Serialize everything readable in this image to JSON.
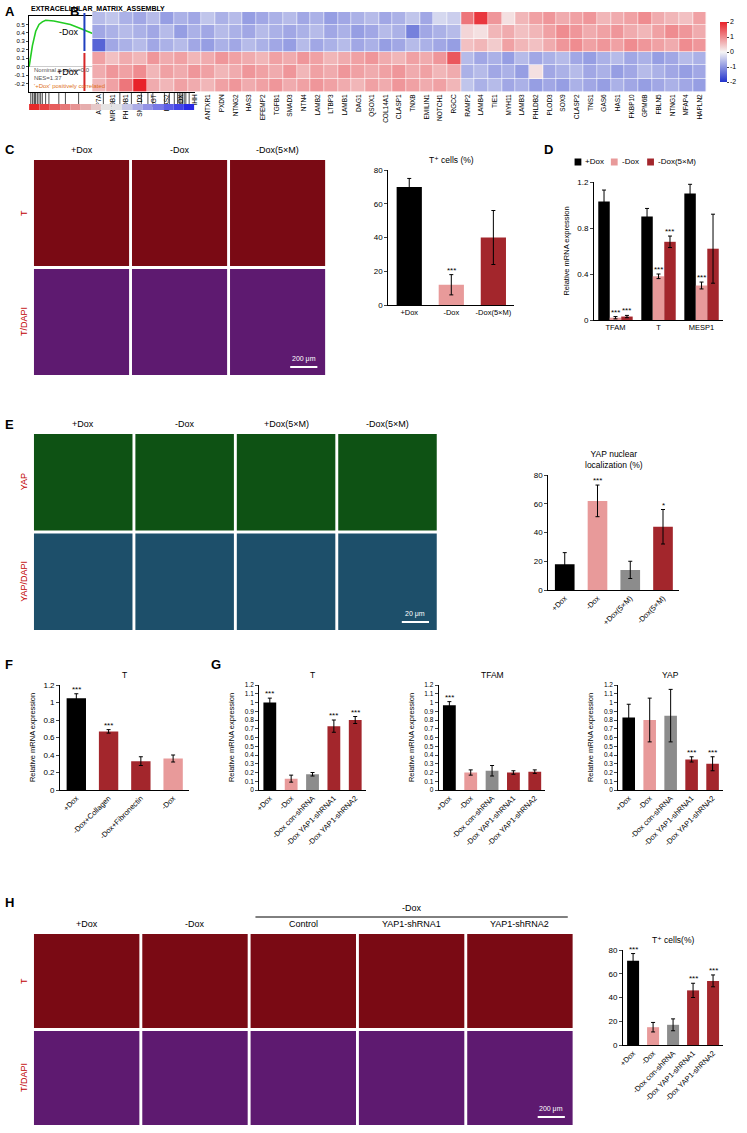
{
  "chart_data": [
    {
      "panel": "A",
      "type": "line",
      "title": "EXTRACELLULAR_MATRIX_ASSEMBLY",
      "color": "#22cc22",
      "x": [
        0,
        2,
        4,
        6,
        8,
        10,
        15,
        20,
        25,
        30,
        35,
        40,
        45,
        50,
        55,
        60,
        65,
        70,
        75,
        80,
        85,
        88,
        90,
        93,
        96,
        98,
        100
      ],
      "values": [
        0,
        0.25,
        0.42,
        0.5,
        0.53,
        0.55,
        0.54,
        0.52,
        0.5,
        0.46,
        0.42,
        0.38,
        0.32,
        0.27,
        0.2,
        0.13,
        0.06,
        0,
        -0.06,
        -0.12,
        -0.18,
        -0.22,
        -0.24,
        -0.2,
        -0.1,
        -0.03,
        0
      ],
      "hits": [
        1,
        2,
        3,
        3.5,
        4,
        5,
        6,
        7,
        8,
        10,
        12,
        18,
        22,
        30,
        45,
        55,
        62,
        68,
        72,
        75,
        82,
        85,
        88,
        90,
        91,
        92,
        93,
        94,
        95,
        97
      ],
      "xlim": [
        0,
        100
      ],
      "ylim": [
        -0.3,
        0.6
      ],
      "yticks": [
        0.5,
        0.4,
        0.3,
        0.2,
        0.1,
        {
          "value": 0,
          "label": "0.0"
        },
        -0.1,
        -0.2
      ],
      "annotations": [
        {
          "text": "Nominal p-value=0.0",
          "color": "#555555"
        },
        {
          "text": "NES=1.37",
          "color": "#555555"
        },
        {
          "text": "'+Dox' positively correlated",
          "color": "#e07020"
        }
      ],
      "tick_labels": "y",
      "grid": false
    },
    {
      "panel": "B",
      "type": "heatmap",
      "categories": [
        "ATP7A",
        "MIR29B1",
        "PHLDB1",
        "SMPD3",
        "AGT",
        "HAS2",
        "LOX",
        "IHH",
        "ANTXR1",
        "PXDN",
        "NTNG2",
        "HAS3",
        "EFEMP2",
        "TGFB1",
        "SMAD3",
        "NTN4",
        "LAMB2",
        "LTBP3",
        "LAMB1",
        "DAG1",
        "QSOX1",
        "COL14A1",
        "CLASP1",
        "TNXB",
        "EMILIN1",
        "NOTCH1",
        "RGCC",
        "RAMP2",
        "LAMB4",
        "TIE1",
        "MYH11",
        "LAMB3",
        "PHLDB2",
        "PLOD3",
        "SOX9",
        "CLASP2",
        "TNS1",
        "GAS6",
        "HAS1",
        "FKBP10",
        "GPM6B",
        "FBLN5",
        "NTNG1",
        "MFAP4",
        "HAPLN2"
      ],
      "cells": [
        [
          -0.6,
          -0.5,
          -0.7,
          -0.8,
          -0.6,
          -0.9,
          -0.7,
          -0.8,
          -0.5,
          -0.7,
          -0.6,
          -0.9,
          -0.8,
          -0.7,
          -0.6,
          -0.8,
          -0.7,
          -0.9,
          -0.8,
          -0.7,
          -0.6,
          -0.8,
          -0.7,
          -0.5,
          -0.8,
          -0.3,
          -0.4,
          1.2,
          1.8,
          0.9,
          0.2,
          0.6,
          0.8,
          0.9,
          0.7,
          0.8,
          0.9,
          0.6,
          0.7,
          0.8,
          1.0,
          0.7,
          0.6,
          0.5,
          0.8
        ],
        [
          -0.8,
          -0.7,
          -0.6,
          -0.7,
          -0.8,
          -0.6,
          -0.9,
          -0.7,
          -0.8,
          -0.6,
          -0.7,
          -0.8,
          -0.6,
          -0.7,
          -0.8,
          -0.7,
          -0.6,
          -0.8,
          -0.7,
          -0.9,
          -0.8,
          -0.6,
          -0.7,
          -1.2,
          -0.8,
          -0.7,
          -0.6,
          0.3,
          0.2,
          0.6,
          0.7,
          0.5,
          0.6,
          0.8,
          1.0,
          0.9,
          0.7,
          0.8,
          0.9,
          0.7,
          0.6,
          0.8,
          1.0,
          0.9,
          0.7
        ],
        [
          -1.5,
          -0.8,
          -0.7,
          -0.6,
          -0.8,
          -0.7,
          -0.6,
          -0.8,
          -0.9,
          -0.7,
          -0.8,
          -0.6,
          -0.7,
          -0.8,
          -0.9,
          -0.6,
          -0.8,
          -0.7,
          -0.6,
          -0.8,
          -0.7,
          -0.9,
          -0.8,
          -0.6,
          -0.7,
          -0.8,
          -0.9,
          0.5,
          0.6,
          0.4,
          0.8,
          0.6,
          0.5,
          0.7,
          0.9,
          1.0,
          0.8,
          0.9,
          0.8,
          1.0,
          0.9,
          0.8,
          0.7,
          1.0,
          0.9
        ],
        [
          0.8,
          0.5,
          0.7,
          0.6,
          0.9,
          0.7,
          0.8,
          0.6,
          0.7,
          0.9,
          0.8,
          0.7,
          0.6,
          0.8,
          0.7,
          0.9,
          0.8,
          0.6,
          0.7,
          0.8,
          0.9,
          0.7,
          0.6,
          0.8,
          0.7,
          0.9,
          1.5,
          -0.6,
          -0.8,
          -0.7,
          -0.9,
          -0.6,
          -0.8,
          -0.7,
          -0.6,
          -0.8,
          -0.9,
          -0.7,
          -0.6,
          -0.8,
          -0.7,
          -0.9,
          -0.8,
          -0.6,
          -0.7
        ],
        [
          0.7,
          0.9,
          0.8,
          1.0,
          0.6,
          0.8,
          0.7,
          0.9,
          0.8,
          0.6,
          0.7,
          0.9,
          0.8,
          0.7,
          0.9,
          0.6,
          0.8,
          0.7,
          0.9,
          0.8,
          0.7,
          0.8,
          0.9,
          0.7,
          0.8,
          0.6,
          0.7,
          -0.7,
          -0.6,
          -0.8,
          -0.7,
          -0.9,
          0.2,
          -0.8,
          -0.7,
          -0.6,
          -0.8,
          -0.7,
          -0.9,
          -0.8,
          -0.6,
          -0.7,
          -0.8,
          -0.9,
          -0.8
        ],
        [
          0.6,
          0.8,
          1.2,
          2.0,
          0.7,
          0.6,
          0.8,
          0.7,
          0.6,
          0.8,
          0.9,
          0.7,
          0.8,
          0.9,
          0.7,
          0.8,
          0.9,
          0.8,
          0.7,
          0.6,
          0.8,
          0.7,
          0.9,
          0.8,
          0.7,
          0.8,
          0.6,
          -0.5,
          -0.7,
          -0.6,
          -0.8,
          -0.7,
          -0.9,
          -0.8,
          -0.9,
          -0.7,
          -0.8,
          -0.9,
          -0.7,
          -0.8,
          -0.9,
          -0.8,
          -0.7,
          -0.8,
          -0.9
        ]
      ],
      "row_groups": [
        {
          "label": "-Dox",
          "size": 3,
          "color": "#1f3fbf"
        },
        {
          "label": "+Dox",
          "size": 3,
          "color": "#d62728"
        }
      ],
      "colorbar": {
        "range": [
          -2,
          2
        ],
        "ticks": [
          2,
          1,
          0,
          -1,
          -2
        ]
      },
      "tick_labels": "x"
    },
    {
      "type": "bar",
      "title": "T⁺ cells (%)",
      "categories": [
        "+Dox",
        "-Dox",
        "-Dox(5×M)"
      ],
      "values": [
        70,
        12,
        40
      ],
      "errors": [
        5,
        6,
        16
      ],
      "colors": [
        "#000000",
        "#e89a9a",
        "#a3262c"
      ],
      "annotations": [
        null,
        "***",
        null
      ],
      "ylim": [
        0,
        80
      ],
      "yticks": [
        0,
        20,
        40,
        60,
        80
      ],
      "grid": false
    },
    {
      "panel": "D",
      "type": "bar",
      "y_label": "Relative mRNA expression",
      "categories": [
        "TFAM",
        "T",
        "MESP1"
      ],
      "series": [
        {
          "name": "+Dox",
          "color": "#000000",
          "values": [
            1.03,
            0.9,
            1.1
          ],
          "errors": [
            0.1,
            0.07,
            0.08
          ],
          "annotations": [
            null,
            null,
            null
          ]
        },
        {
          "name": "-Dox",
          "color": "#e89a9a",
          "values": [
            0.02,
            0.38,
            0.3
          ],
          "errors": [
            0.01,
            0.02,
            0.03
          ],
          "annotations": [
            "***",
            "***",
            "***"
          ]
        },
        {
          "name": "-Dox(5×M)",
          "color": "#a3262c",
          "values": [
            0.03,
            0.68,
            0.62
          ],
          "errors": [
            0.01,
            0.05,
            0.3
          ],
          "annotations": [
            "***",
            "***",
            null
          ]
        }
      ],
      "ylim": [
        0,
        1.2
      ],
      "yticks": [
        0,
        0.4,
        0.8,
        1.2
      ],
      "legend": "top",
      "grid": false
    },
    {
      "type": "bar",
      "title": "YAP nuclear\nlocalization (%)",
      "categories": [
        "+Dox",
        "-Dox",
        "+Dox(5×M)",
        "-Dox(5×M)"
      ],
      "values": [
        18,
        62,
        14,
        44
      ],
      "errors": [
        8,
        11,
        6,
        12
      ],
      "colors": [
        "#000000",
        "#e89a9a",
        "#8c8c8c",
        "#a3262c"
      ],
      "annotations": [
        null,
        "***",
        null,
        "*"
      ],
      "ylim": [
        0,
        80
      ],
      "yticks": [
        0,
        20,
        40,
        60,
        80
      ],
      "grid": false
    },
    {
      "panel": "F",
      "type": "bar",
      "title": "T",
      "y_label": "Relative mRNA expression",
      "categories": [
        "+Dox",
        "-Dox+Collagen",
        "-Dox+Fibronectin",
        "-Dox"
      ],
      "values": [
        1.05,
        0.67,
        0.33,
        0.36
      ],
      "errors": [
        0.05,
        0.02,
        0.05,
        0.04
      ],
      "colors": [
        "#000000",
        "#a3262c",
        "#a3262c",
        "#e89a9a"
      ],
      "annotations": [
        "***",
        "***",
        null,
        null
      ],
      "ylim": [
        0,
        1.2
      ],
      "yticks": [
        0,
        0.2,
        0.4,
        0.6,
        0.8,
        1,
        1.2
      ],
      "grid": false
    },
    {
      "panel": "G",
      "type": "bar",
      "title": "T",
      "y_label": "Relative mRNA expression",
      "categories": [
        "+Dox",
        "-Dox",
        "-Dox con-shRNA",
        "-Dox YAP1-shRNA1",
        "-Dox YAP1-shRNA2"
      ],
      "values": [
        1.0,
        0.13,
        0.18,
        0.73,
        0.8
      ],
      "errors": [
        0.05,
        0.04,
        0.02,
        0.07,
        0.04
      ],
      "colors": [
        "#000000",
        "#e89a9a",
        "#8c8c8c",
        "#a3262c",
        "#a3262c"
      ],
      "annotations": [
        "***",
        null,
        null,
        "***",
        "***"
      ],
      "ylim": [
        0,
        1.2
      ],
      "yticks": [
        0,
        0.1,
        0.2,
        0.3,
        0.4,
        0.5,
        0.6,
        0.7,
        0.8,
        0.9,
        1,
        1.1,
        1.2
      ],
      "grid": false
    },
    {
      "type": "bar",
      "title": "TFAM",
      "y_label": "Relative mRNA expression",
      "categories": [
        "+Dox",
        "-Dox",
        "-Dox con-shRNA",
        "-Dox YAP1-shRNA1",
        "-Dox YAP1-shRNA2"
      ],
      "values": [
        0.97,
        0.2,
        0.22,
        0.2,
        0.21
      ],
      "errors": [
        0.04,
        0.03,
        0.06,
        0.02,
        0.02
      ],
      "colors": [
        "#000000",
        "#e89a9a",
        "#8c8c8c",
        "#a3262c",
        "#a3262c"
      ],
      "annotations": [
        "***",
        null,
        null,
        null,
        null
      ],
      "ylim": [
        0,
        1.2
      ],
      "yticks": [
        0,
        0.1,
        0.2,
        0.3,
        0.4,
        0.5,
        0.6,
        0.7,
        0.8,
        0.9,
        1,
        1.1,
        1.2
      ],
      "grid": false
    },
    {
      "type": "bar",
      "title": "YAP",
      "y_label": "Relative mRNA expression",
      "categories": [
        "+Dox",
        "-Dox",
        "-Dox con-shRNA",
        "-Dox YAP1-shRNA1",
        "-Dox YAP1-shRNA2"
      ],
      "values": [
        0.83,
        0.8,
        0.85,
        0.35,
        0.3
      ],
      "errors": [
        0.15,
        0.25,
        0.3,
        0.03,
        0.08
      ],
      "colors": [
        "#000000",
        "#e89a9a",
        "#8c8c8c",
        "#a3262c",
        "#a3262c"
      ],
      "annotations": [
        null,
        null,
        null,
        "***",
        "***"
      ],
      "ylim": [
        0,
        1.2
      ],
      "yticks": [
        0,
        0.1,
        0.2,
        0.3,
        0.4,
        0.5,
        0.6,
        0.7,
        0.8,
        0.9,
        1,
        1.1,
        1.2
      ],
      "grid": false
    },
    {
      "type": "bar",
      "title": "T⁺ cells(%)",
      "categories": [
        "+Dox",
        "-Dox",
        "-Dox con-shRNA",
        "-Dox YAP1-shRNA1",
        "-Dox YAP1-shRNA2"
      ],
      "values": [
        71,
        15,
        17,
        46,
        54
      ],
      "errors": [
        6,
        4,
        5,
        6,
        5
      ],
      "colors": [
        "#000000",
        "#e89a9a",
        "#8c8c8c",
        "#a3262c",
        "#a3262c"
      ],
      "annotations": [
        "***",
        null,
        null,
        "***",
        "***"
      ],
      "ylim": [
        0,
        80
      ],
      "yticks": [
        0,
        20,
        40,
        60,
        80
      ],
      "grid": false
    }
  ],
  "images": [
    {
      "panel": "C",
      "columns": [
        "+Dox",
        "-Dox",
        "-Dox(5×M)"
      ],
      "rows": [
        "T",
        "T/DAPI"
      ],
      "colors": [
        "#7a0a14",
        "#5e1a70"
      ],
      "scale_bar": "200 μm"
    },
    {
      "panel": "E",
      "columns": [
        "+Dox",
        "-Dox",
        "+Dox(5×M)",
        "-Dox(5×M)"
      ],
      "rows": [
        "YAP",
        "YAP/DAPI"
      ],
      "colors": [
        "#0e5214",
        "#1d4f6a"
      ],
      "scale_bar": "20 μm"
    },
    {
      "panel": "H",
      "group_header": "-Dox",
      "group_span": [
        2,
        4
      ],
      "columns": [
        "+Dox",
        "-Dox",
        "Control",
        "YAP1-shRNA1",
        "YAP1-shRNA2"
      ],
      "rows": [
        "T",
        "T/DAPI"
      ],
      "colors": [
        "#7a0a14",
        "#5e1a70"
      ],
      "scale_bar": "200 μm"
    }
  ]
}
